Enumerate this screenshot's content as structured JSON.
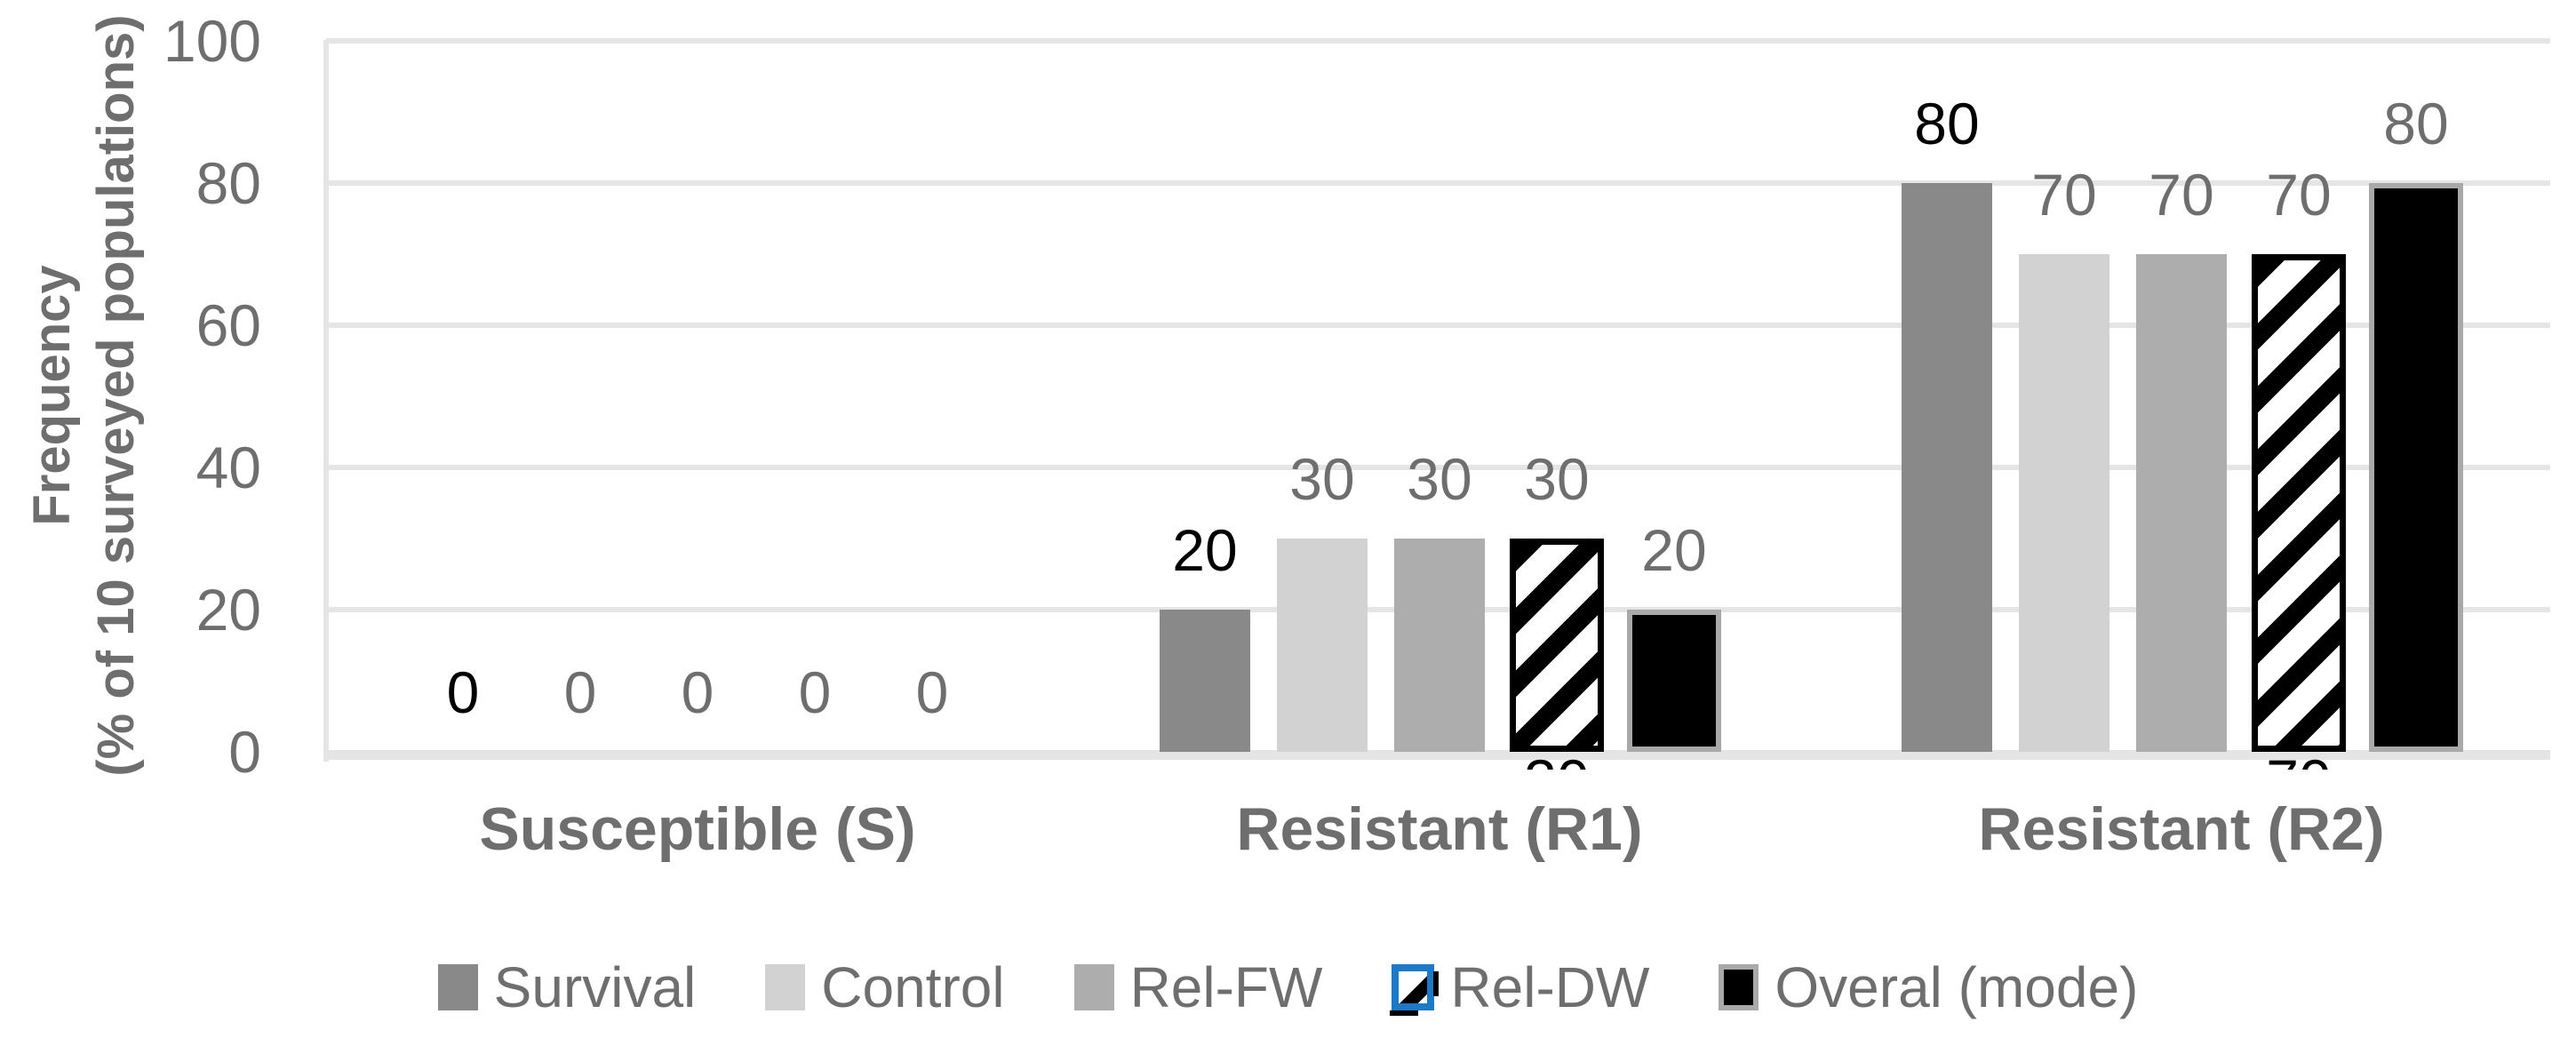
{
  "chart_data": {
    "type": "bar",
    "title": "",
    "categories": [
      "Susceptible (S)",
      "Resistant (R1)",
      "Resistant (R2)"
    ],
    "series": [
      {
        "name": "Survival",
        "color": "#898989",
        "swatch": "solid",
        "values": [
          0,
          20,
          80
        ],
        "label_color": "#000000"
      },
      {
        "name": "Control",
        "color": "#d2d2d2",
        "swatch": "solid",
        "values": [
          0,
          30,
          70
        ],
        "label_color": "#6e6e6e"
      },
      {
        "name": "Rel-FW",
        "color": "#adadad",
        "swatch": "solid",
        "values": [
          0,
          30,
          70
        ],
        "label_color": "#6e6e6e"
      },
      {
        "name": "Rel-DW",
        "color": "hatch",
        "swatch": "hatch",
        "values": [
          0,
          30,
          70
        ],
        "label_color": "#6e6e6e"
      },
      {
        "name": "Overal (mode)",
        "color": "#000000",
        "swatch": "black-bordered",
        "values": [
          0,
          20,
          80
        ],
        "label_color": "#6e6e6e"
      }
    ],
    "ylabel_line1": "Frequency",
    "ylabel_line2": "(% of 10 surveyed populations)",
    "yticks": [
      0,
      20,
      40,
      60,
      80,
      100
    ],
    "ylim": [
      0,
      100
    ],
    "grid": true,
    "legend_position": "bottom",
    "notes": "Rel-DW data labels also appear clipped below the x-axis under the hatched bars in R1 and R2"
  },
  "colors": {
    "gridline": "#e5e5e5",
    "text_gray": "#6e6e6e",
    "survival_label": "#000000",
    "hatch_border": "#000000",
    "overal_border": "#a9a9a9",
    "legend_selection_blue": "#1b79c7",
    "background": "#ffffff"
  }
}
